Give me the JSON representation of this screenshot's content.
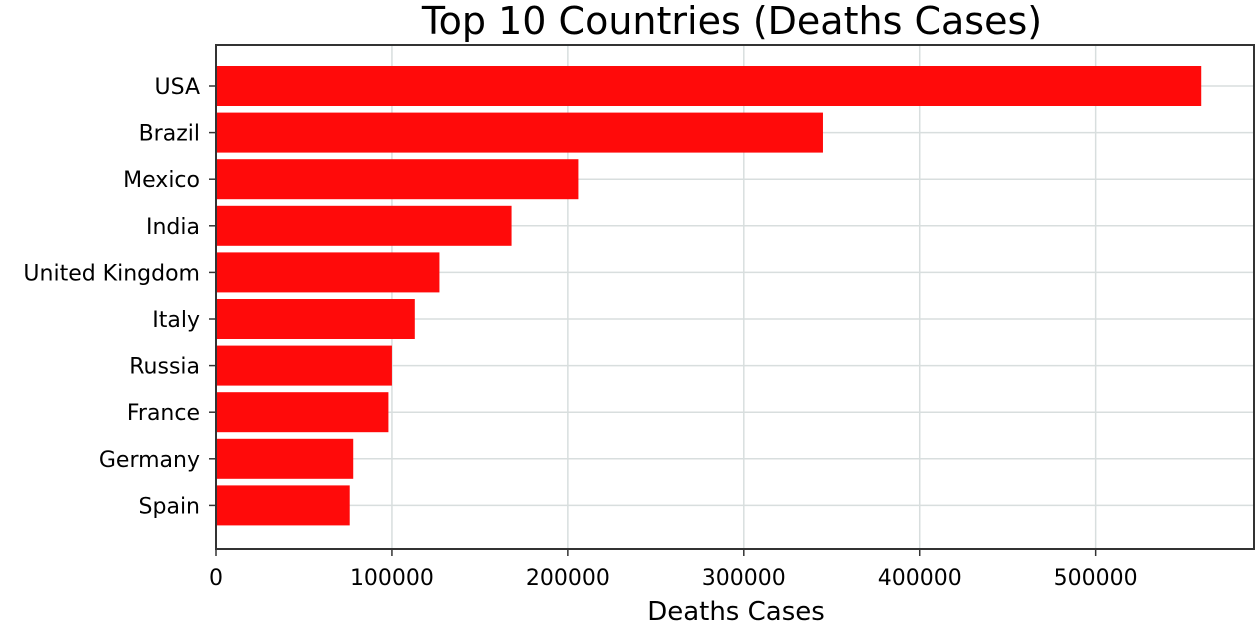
{
  "chart_data": {
    "type": "bar",
    "orientation": "horizontal",
    "title": "Top 10 Countries (Deaths Cases)",
    "xlabel": "Deaths Cases",
    "ylabel": "",
    "categories": [
      "USA",
      "Brazil",
      "Mexico",
      "India",
      "United Kingdom",
      "Italy",
      "Russia",
      "France",
      "Germany",
      "Spain"
    ],
    "values": [
      560000,
      345000,
      206000,
      168000,
      127000,
      113000,
      100000,
      98000,
      78000,
      76000
    ],
    "xticks": [
      0,
      100000,
      200000,
      300000,
      400000,
      500000
    ],
    "xtick_labels": [
      "0",
      "100000",
      "200000",
      "300000",
      "400000",
      "500000"
    ],
    "xlim": [
      0,
      590000
    ],
    "grid": true,
    "colors": {
      "bar": "#ff0a0a",
      "grid": "#d8dede",
      "frame": "#333333"
    }
  }
}
